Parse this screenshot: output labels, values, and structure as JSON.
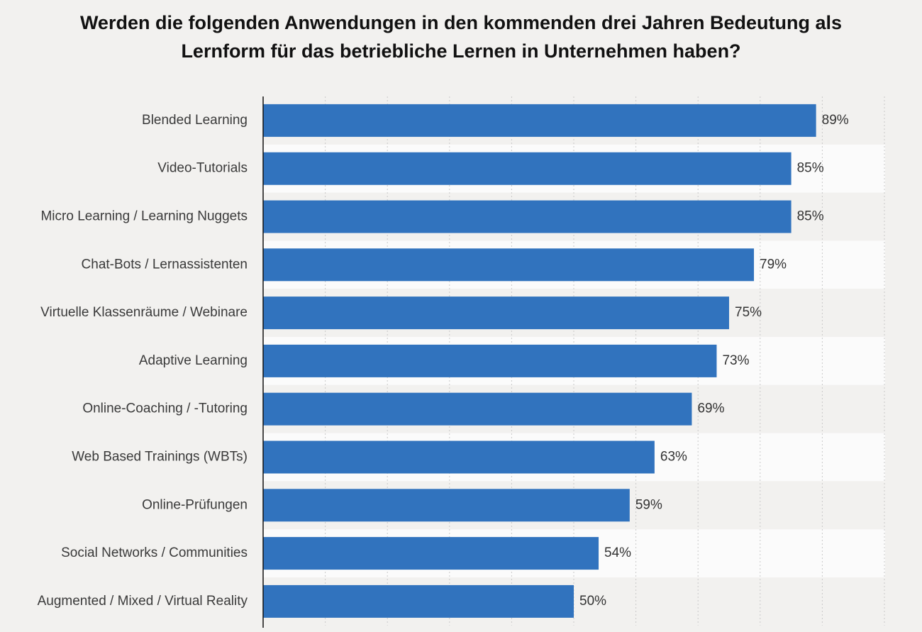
{
  "chart_data": {
    "type": "bar",
    "orientation": "horizontal",
    "title_lines": [
      "Werden die folgenden Anwendungen in den kommenden drei Jahren Bedeutung als",
      "Lernform für das betriebliche Lernen in Unternehmen haben?"
    ],
    "categories": [
      "Blended Learning",
      "Video-Tutorials",
      "Micro Learning / Learning Nuggets",
      "Chat-Bots / Lernassistenten",
      "Virtuelle Klassenräume / Webinare",
      "Adaptive Learning",
      "Online-Coaching / -Tutoring",
      "Web Based Trainings (WBTs)",
      "Online-Prüfungen",
      "Social Networks / Communities",
      "Augmented / Mixed / Virtual Reality"
    ],
    "values": [
      89,
      85,
      85,
      79,
      75,
      73,
      69,
      63,
      59,
      54,
      50
    ],
    "value_labels": [
      "89%",
      "85%",
      "85%",
      "79%",
      "75%",
      "73%",
      "69%",
      "63%",
      "59%",
      "54%",
      "50%"
    ],
    "xlim": [
      0,
      100
    ],
    "unit": "%",
    "grid": true,
    "bar_color": "#3173be"
  }
}
